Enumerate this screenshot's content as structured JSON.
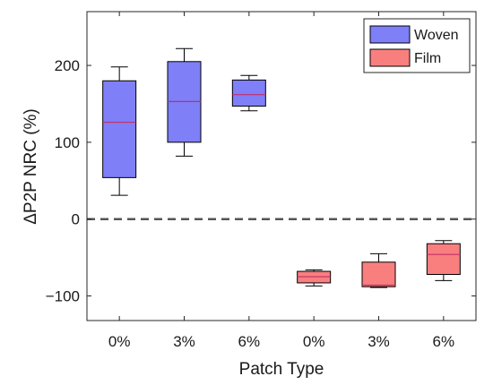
{
  "chart_data": {
    "type": "box",
    "title": "",
    "xlabel": "Patch Type",
    "ylabel": "ΔP2P NRC (%)",
    "ylim": [
      -132,
      270
    ],
    "yticks": [
      -100,
      0,
      100,
      200
    ],
    "ytick_labels": [
      "−100",
      "0",
      "100",
      "200"
    ],
    "categories": [
      "0%",
      "3%",
      "6%",
      "0%",
      "3%",
      "6%"
    ],
    "reference_line": {
      "y": 0,
      "style": "dashed",
      "color": "#555555"
    },
    "grid": false,
    "legend_position": "top-right",
    "series": [
      {
        "name": "Woven",
        "color": "#7f7ff7",
        "median_color": "#c0306a",
        "boxes": [
          {
            "category_index": 0,
            "min": 31,
            "q1": 54,
            "median": 126,
            "q3": 180,
            "max": 198
          },
          {
            "category_index": 1,
            "min": 82,
            "q1": 100,
            "median": 153,
            "q3": 205,
            "max": 222
          },
          {
            "category_index": 2,
            "min": 141,
            "q1": 147,
            "median": 162,
            "q3": 181,
            "max": 187
          }
        ]
      },
      {
        "name": "Film",
        "color": "#f97f7f",
        "median_color": "#c0306a",
        "boxes": [
          {
            "category_index": 3,
            "min": -87,
            "q1": -83,
            "median": -75,
            "q3": -68,
            "max": -66
          },
          {
            "category_index": 4,
            "min": -89,
            "q1": -88,
            "median": -86,
            "q3": -56,
            "max": -45
          },
          {
            "category_index": 5,
            "min": -80,
            "q1": -72,
            "median": -46,
            "q3": -32,
            "max": -28
          }
        ]
      }
    ]
  }
}
